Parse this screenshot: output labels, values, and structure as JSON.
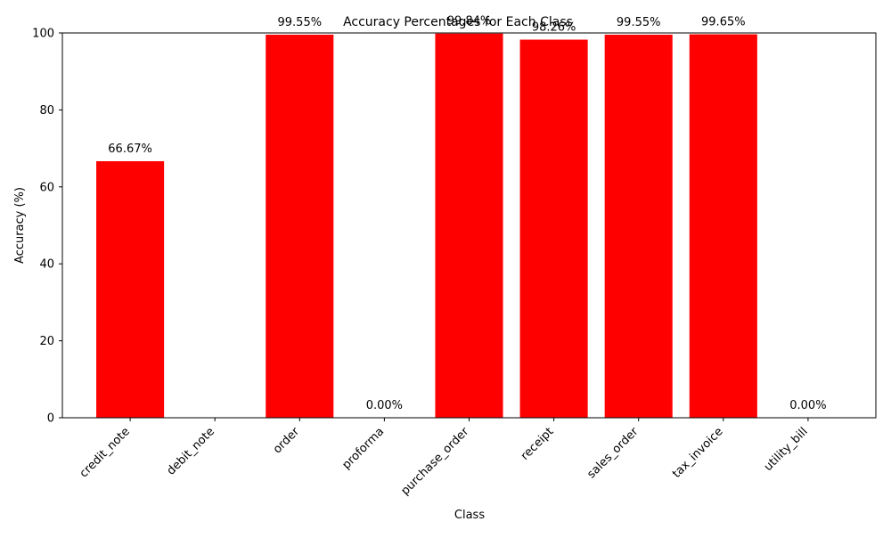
{
  "chart_data": {
    "type": "bar",
    "title": "Accuracy Percentages for Each Class",
    "xlabel": "Class",
    "ylabel": "Accuracy (%)",
    "ylim": [
      0,
      100
    ],
    "yticks": [
      0,
      20,
      40,
      60,
      80,
      100
    ],
    "grid": false,
    "bar_color": "#ff0000",
    "categories": [
      "credit_note",
      "debit_note",
      "order",
      "proforma",
      "purchase_order",
      "receipt",
      "sales_order",
      "tax_invoice",
      "utility_bill"
    ],
    "values": [
      66.67,
      null,
      99.55,
      0.0,
      99.84,
      98.26,
      99.55,
      99.65,
      0.0
    ],
    "data_labels": [
      "66.67%",
      "",
      "99.55%",
      "0.00%",
      "99.84%",
      "98.26%",
      "99.55%",
      "99.65%",
      "0.00%"
    ]
  }
}
